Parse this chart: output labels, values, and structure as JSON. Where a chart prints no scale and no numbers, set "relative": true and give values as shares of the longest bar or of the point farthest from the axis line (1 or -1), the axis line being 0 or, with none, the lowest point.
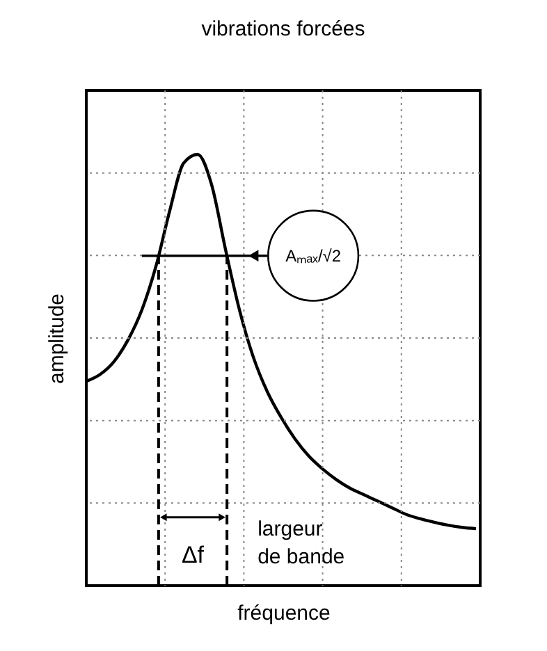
{
  "chart_data": {
    "type": "line",
    "title": "vibrations forcées",
    "xlabel": "fréquence",
    "ylabel": "amplitude",
    "relative": true,
    "grid": true,
    "categories": [
      null,
      null,
      null,
      null,
      null,
      null,
      null,
      null,
      null,
      null,
      null,
      null,
      null,
      null,
      null,
      null,
      null,
      null,
      null,
      null,
      null,
      null,
      null,
      null,
      null,
      null,
      null,
      null,
      null
    ],
    "series": [
      {
        "color": "#000000",
        "values": [
          0.474,
          0.49,
          0.52,
          0.57,
          0.64,
          0.74,
          0.87,
          0.98,
          1.0,
          0.93,
          0.78,
          0.64,
          0.53,
          0.45,
          0.39,
          0.34,
          0.3,
          0.27,
          0.245,
          0.225,
          0.21,
          0.195,
          0.18,
          0.165,
          0.155,
          0.147,
          0.14,
          0.135,
          0.132
        ]
      }
    ],
    "ref_lines": [
      {
        "axis": "y",
        "value": 0.765,
        "label": "Aₘₐₓ/√2",
        "color": "#000000",
        "line_style": "solid"
      }
    ],
    "annotations": [
      "Δf",
      "largeur de bande"
    ]
  }
}
